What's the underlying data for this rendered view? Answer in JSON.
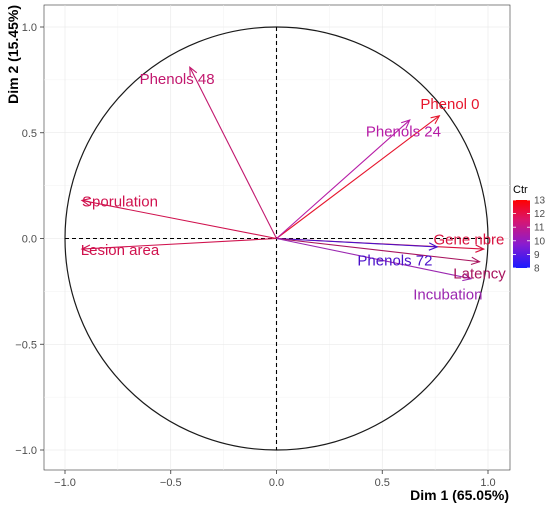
{
  "chart_data": {
    "type": "scatter",
    "subtype": "pca-correlation-circle",
    "xlabel": "Dim 1 (65.05%)",
    "ylabel": "Dim 2 (15.45%)",
    "xlim": [
      -1.07,
      1.07
    ],
    "ylim": [
      -1.07,
      1.07
    ],
    "x_ticks": [
      -1.0,
      -0.5,
      0.0,
      0.5,
      1.0
    ],
    "y_ticks": [
      -1.0,
      -0.5,
      0.0,
      0.5,
      1.0
    ],
    "x_tick_labels": [
      "−1.0",
      "−0.5",
      "0.0",
      "0.5",
      "1.0"
    ],
    "y_tick_labels": [
      "−1.0",
      "−0.5",
      "0.0",
      "0.5",
      "1.0"
    ],
    "grid": true,
    "unit_circle": true,
    "variables": [
      {
        "name": "Phenols 48",
        "x": -0.41,
        "y": 0.81,
        "ctr": 10.6,
        "color": "#c2186e",
        "label_x": -0.47,
        "label_y": 0.75
      },
      {
        "name": "Phenol 0",
        "x": 0.77,
        "y": 0.58,
        "ctr": 12.7,
        "color": "#e6162d",
        "label_x": 0.82,
        "label_y": 0.63
      },
      {
        "name": "Phenols 24",
        "x": 0.63,
        "y": 0.56,
        "ctr": 10.3,
        "color": "#b61ca6",
        "label_x": 0.6,
        "label_y": 0.5
      },
      {
        "name": "Sporulation",
        "x": -0.92,
        "y": 0.18,
        "ctr": 12.3,
        "color": "#d0124e",
        "label_x": -0.74,
        "label_y": 0.17
      },
      {
        "name": "Lesion area",
        "x": -0.92,
        "y": -0.05,
        "ctr": 12.1,
        "color": "#d0124e",
        "label_x": -0.74,
        "label_y": -0.06
      },
      {
        "name": "Gene nbre",
        "x": 0.98,
        "y": -0.05,
        "ctr": 12.6,
        "color": "#d8123f",
        "label_x": 0.91,
        "label_y": -0.01
      },
      {
        "name": "Phenols 72",
        "x": 0.76,
        "y": -0.04,
        "ctr": 8.2,
        "color": "#4a10c9",
        "label_x": 0.56,
        "label_y": -0.11
      },
      {
        "name": "Latency",
        "x": 0.96,
        "y": -0.11,
        "ctr": 11.4,
        "color": "#a8155f",
        "label_x": 0.96,
        "label_y": -0.17
      },
      {
        "name": "Incubation",
        "x": 0.92,
        "y": -0.19,
        "ctr": 9.6,
        "color": "#9b27b0",
        "label_x": 0.81,
        "label_y": -0.27
      }
    ],
    "legend": {
      "title": "Ctr",
      "placement": "right",
      "min": 8,
      "max": 13,
      "ticks": [
        "8",
        "9",
        "10",
        "11",
        "12",
        "13"
      ],
      "color_low": "#1a1aff",
      "color_high": "#ff0000"
    }
  }
}
